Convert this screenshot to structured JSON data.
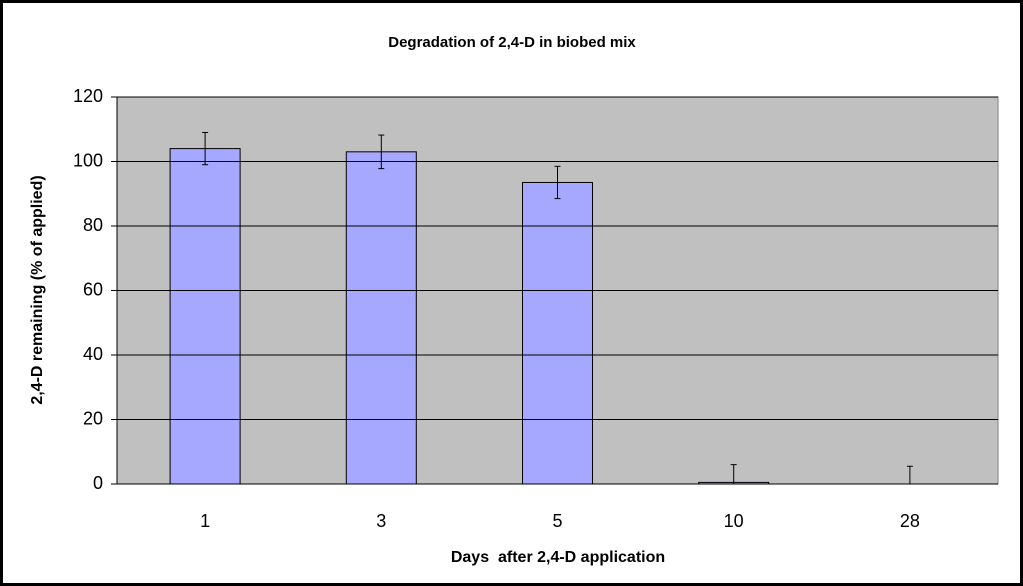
{
  "chart_data": {
    "type": "bar",
    "title": "Degradation of 2,4-D in biobed mix",
    "x_label": "Days  after 2,4-D application",
    "y_label": "2,4-D remaining (% of applied)",
    "categories": [
      "1",
      "3",
      "5",
      "10",
      "28"
    ],
    "values": [
      104,
      103,
      93.5,
      0.5,
      0
    ],
    "errors": [
      5,
      5.2,
      5,
      5.5,
      5.5
    ],
    "color": "#a6a8ff",
    "ylim": [
      0,
      120
    ],
    "yticks": [
      0,
      20,
      40,
      60,
      80,
      100,
      120
    ],
    "grid": true
  }
}
